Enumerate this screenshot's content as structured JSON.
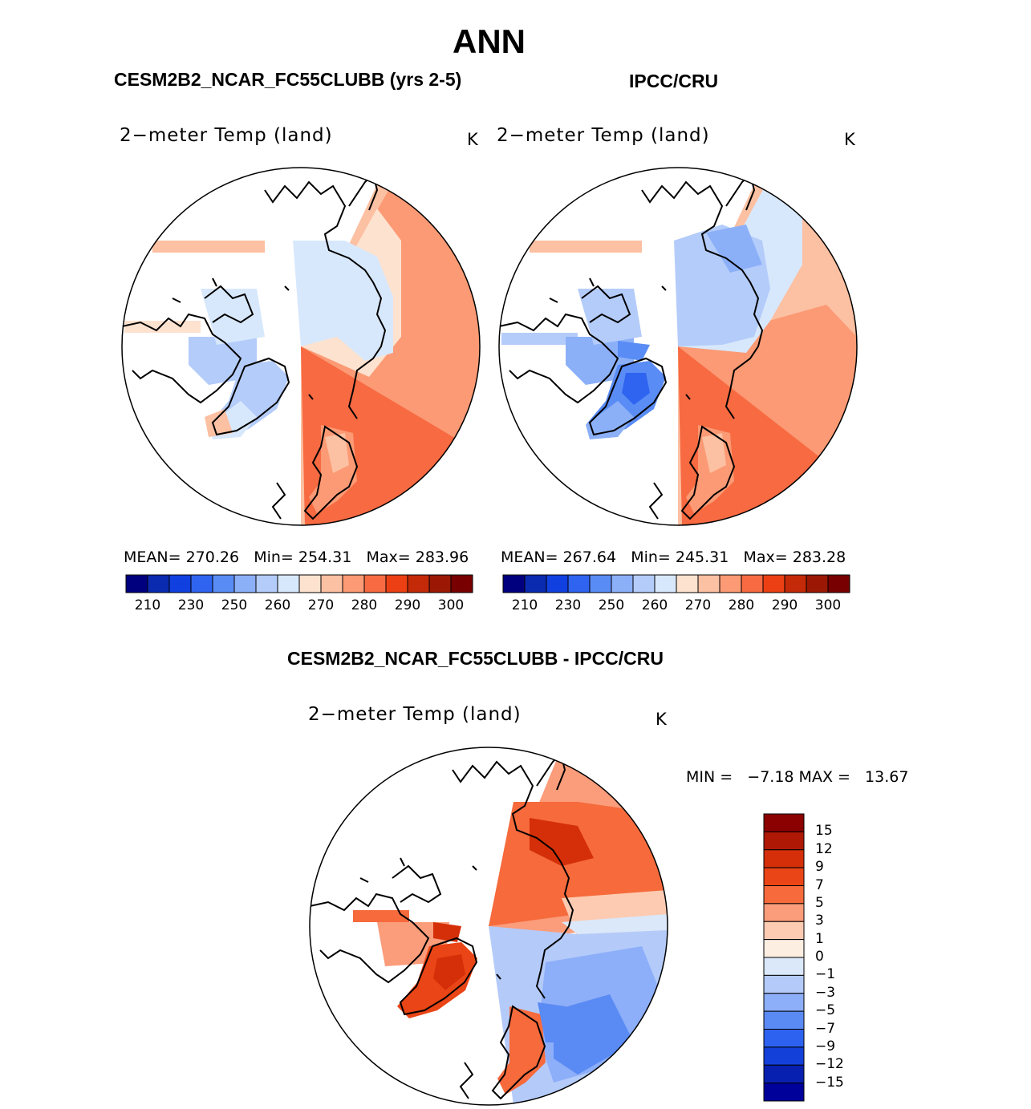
{
  "page": {
    "season": "ANN",
    "model_label": "CESM2B2_NCAR_FC55CLUBB (yrs 2-5)",
    "obs_label": "IPCC/CRU",
    "diff_label": "CESM2B2_NCAR_FC55CLUBB - IPCC/CRU"
  },
  "panels": [
    {
      "title": "2−meter Temp (land)",
      "unit": "K",
      "mean_label": "MEAN=",
      "mean": "270.26",
      "min_label": "Min=",
      "min": "254.31",
      "max_label": "Max=",
      "max": "283.96"
    },
    {
      "title": "2−meter Temp (land)",
      "unit": "K",
      "mean_label": "MEAN=",
      "mean": "267.64",
      "min_label": "Min=",
      "min": "245.31",
      "max_label": "Max=",
      "max": "283.28"
    },
    {
      "title": "2−meter Temp (land)",
      "unit": "K",
      "minmax_text": "MIN =   −7.18 MAX =   13.67"
    }
  ],
  "colorbars": {
    "abs_ticks": [
      "210",
      "230",
      "250",
      "260",
      "270",
      "280",
      "290",
      "300"
    ],
    "abs_colors": [
      "#00007f",
      "#0a2ab0",
      "#1040e0",
      "#2e64f0",
      "#5a8cf5",
      "#8cb0f8",
      "#b4ccfa",
      "#d8e8fc",
      "#fde2cf",
      "#fcc0a2",
      "#fb9a74",
      "#f76a42",
      "#ec4014",
      "#c42a08",
      "#9a1804",
      "#780000"
    ],
    "diff_ticks": [
      "15",
      "12",
      "9",
      "7",
      "5",
      "3",
      "1",
      "0",
      "−1",
      "−3",
      "−5",
      "−7",
      "−9",
      "−12",
      "−15"
    ],
    "diff_colors": [
      "#8b0000",
      "#b01806",
      "#d42f08",
      "#ea4516",
      "#f66a3c",
      "#fb9c7a",
      "#fdcbb2",
      "#fdeee2",
      "#dae8fa",
      "#b4cbfa",
      "#8daef8",
      "#5a8af4",
      "#2c62ef",
      "#1440da",
      "#0820b0",
      "#00009a"
    ]
  }
}
